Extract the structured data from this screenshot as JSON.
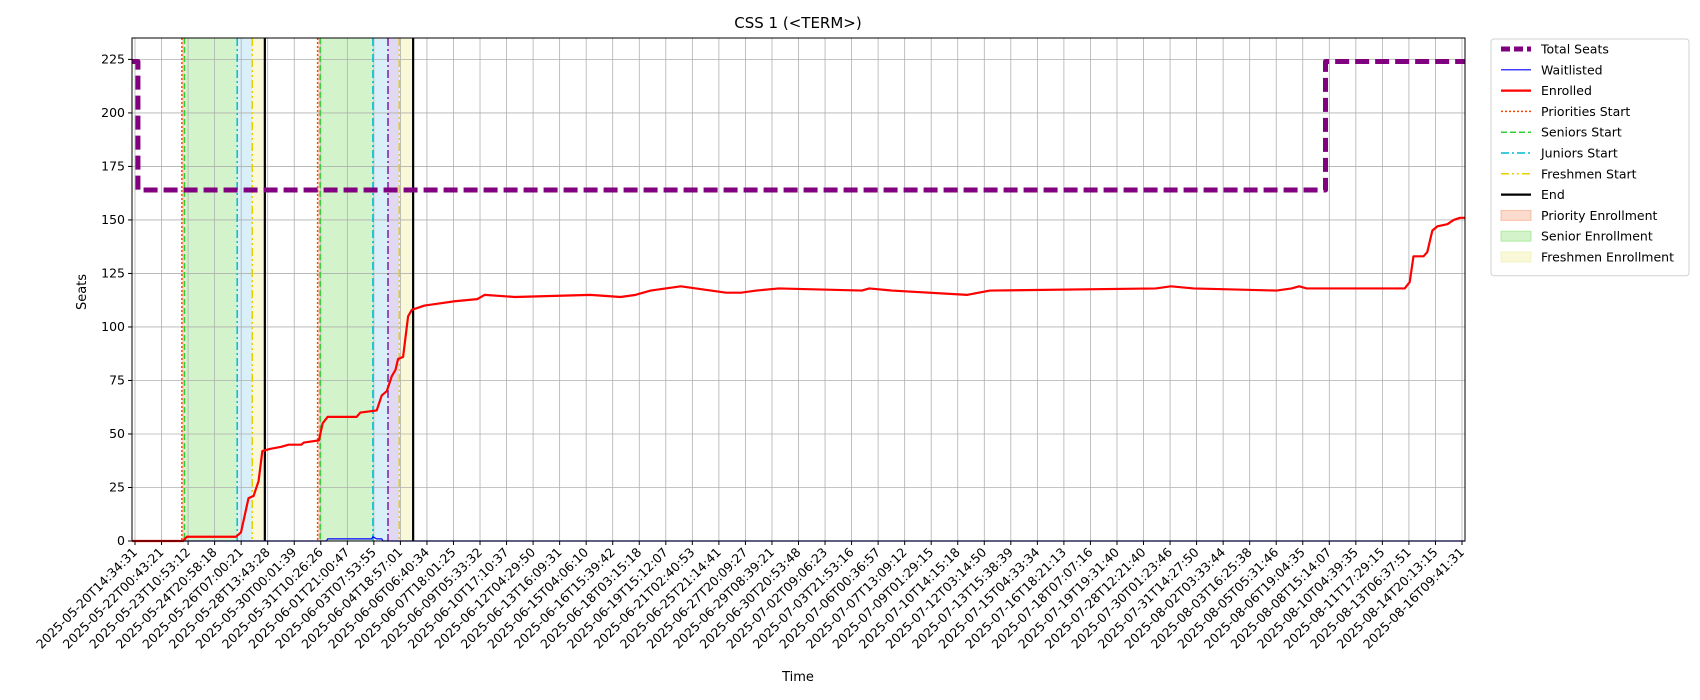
{
  "chart_data": {
    "type": "line",
    "title": "CSS 1 (<TERM>)",
    "xlabel": "Time",
    "ylabel": "Seats",
    "x_range": [
      "2025-05-20T14:34:31",
      "2025-08-17T00:00:00"
    ],
    "ylim": [
      0,
      235
    ],
    "y_ticks": [
      0,
      25,
      50,
      75,
      100,
      125,
      150,
      175,
      200,
      225
    ],
    "x_tick_labels": [
      "2025-05-20T14:34:31",
      "2025-05-22T00:43:21",
      "2025-05-23T10:53:12",
      "2025-05-24T20:58:18",
      "2025-05-26T07:00:21",
      "2025-05-28T13:43:28",
      "2025-05-30T00:01:39",
      "2025-05-31T10:26:26",
      "2025-06-01T21:00:47",
      "2025-06-03T07:53:55",
      "2025-06-04T18:57:01",
      "2025-06-06T06:40:34",
      "2025-06-07T18:01:25",
      "2025-06-09T05:33:32",
      "2025-06-10T17:10:37",
      "2025-06-12T04:29:50",
      "2025-06-13T16:09:31",
      "2025-06-15T04:06:10",
      "2025-06-16T15:39:42",
      "2025-06-18T03:15:18",
      "2025-06-19T15:12:07",
      "2025-06-21T02:40:53",
      "2025-06-25T21:14:41",
      "2025-06-27T20:09:27",
      "2025-06-29T08:39:21",
      "2025-06-30T20:53:48",
      "2025-07-02T09:06:23",
      "2025-07-03T21:53:16",
      "2025-07-06T00:36:57",
      "2025-07-07T13:09:12",
      "2025-07-09T01:29:15",
      "2025-07-10T14:15:18",
      "2025-07-12T03:14:50",
      "2025-07-13T15:38:39",
      "2025-07-15T04:33:34",
      "2025-07-16T18:21:13",
      "2025-07-18T07:07:16",
      "2025-07-19T19:31:40",
      "2025-07-28T12:21:40",
      "2025-07-30T01:23:46",
      "2025-07-31T14:27:50",
      "2025-08-02T03:33:44",
      "2025-08-03T16:25:38",
      "2025-08-05T05:31:46",
      "2025-08-06T19:04:35",
      "2025-08-08T15:14:07",
      "2025-08-10T04:39:35",
      "2025-08-11T17:29:15",
      "2025-08-13T06:37:51",
      "2025-08-14T20:13:15",
      "2025-08-16T09:41:31"
    ],
    "grid": true,
    "legend_position": "outside-right",
    "series": [
      {
        "name": "Total Seats",
        "color": "#800080",
        "style": "dashed-thick",
        "points": [
          [
            "2025-05-20T14:34:31",
            224
          ],
          [
            "2025-05-21T00:00:00",
            224
          ],
          [
            "2025-05-21T00:00:00",
            164
          ],
          [
            "2025-08-07T18:00:00",
            164
          ],
          [
            "2025-08-07T18:00:00",
            224
          ],
          [
            "2025-08-17T00:00:00",
            224
          ]
        ]
      },
      {
        "name": "Waitlisted",
        "color": "#0000ff",
        "style": "solid-thin",
        "points": [
          [
            "2025-05-20T14:34:31",
            0
          ],
          [
            "2025-06-02T12:00:00",
            0
          ],
          [
            "2025-06-02T14:00:00",
            1
          ],
          [
            "2025-06-05T12:00:00",
            1
          ],
          [
            "2025-06-05T14:00:00",
            2
          ],
          [
            "2025-06-05T20:00:00",
            1
          ],
          [
            "2025-06-06T04:00:00",
            1
          ],
          [
            "2025-06-06T06:00:00",
            0
          ],
          [
            "2025-08-17T00:00:00",
            0
          ]
        ]
      },
      {
        "name": "Enrolled",
        "color": "#ff0000",
        "style": "solid",
        "points": [
          [
            "2025-05-20T14:34:31",
            0
          ],
          [
            "2025-05-24T00:00:00",
            0
          ],
          [
            "2025-05-24T06:00:00",
            2
          ],
          [
            "2025-05-27T12:00:00",
            2
          ],
          [
            "2025-05-27T20:00:00",
            4
          ],
          [
            "2025-05-28T02:00:00",
            12
          ],
          [
            "2025-05-28T08:00:00",
            20
          ],
          [
            "2025-05-28T16:00:00",
            21
          ],
          [
            "2025-05-29T00:00:00",
            28
          ],
          [
            "2025-05-29T06:00:00",
            42
          ],
          [
            "2025-05-29T18:00:00",
            43
          ],
          [
            "2025-05-30T12:00:00",
            44
          ],
          [
            "2025-05-31T00:00:00",
            45
          ],
          [
            "2025-05-31T20:00:00",
            45
          ],
          [
            "2025-06-01T00:00:00",
            46
          ],
          [
            "2025-06-02T00:00:00",
            47
          ],
          [
            "2025-06-02T06:00:00",
            55
          ],
          [
            "2025-06-02T14:00:00",
            58
          ],
          [
            "2025-06-04T12:00:00",
            58
          ],
          [
            "2025-06-04T18:00:00",
            60
          ],
          [
            "2025-06-05T20:00:00",
            61
          ],
          [
            "2025-06-06T04:00:00",
            68
          ],
          [
            "2025-06-06T12:00:00",
            70
          ],
          [
            "2025-06-06T20:00:00",
            77
          ],
          [
            "2025-06-07T02:00:00",
            80
          ],
          [
            "2025-06-07T06:00:00",
            85
          ],
          [
            "2025-06-07T14:00:00",
            86
          ],
          [
            "2025-06-07T22:00:00",
            105
          ],
          [
            "2025-06-08T04:00:00",
            108
          ],
          [
            "2025-06-08T14:00:00",
            109
          ],
          [
            "2025-06-09T00:00:00",
            110
          ],
          [
            "2025-06-10T00:00:00",
            111
          ],
          [
            "2025-06-11T00:00:00",
            112
          ],
          [
            "2025-06-12T12:00:00",
            113
          ],
          [
            "2025-06-13T00:00:00",
            115
          ],
          [
            "2025-06-15T00:00:00",
            114
          ],
          [
            "2025-06-20T00:00:00",
            115
          ],
          [
            "2025-06-22T00:00:00",
            114
          ],
          [
            "2025-06-23T00:00:00",
            115
          ],
          [
            "2025-06-24T00:00:00",
            117
          ],
          [
            "2025-06-26T00:00:00",
            119
          ],
          [
            "2025-06-28T00:00:00",
            117
          ],
          [
            "2025-06-29T00:00:00",
            116
          ],
          [
            "2025-06-30T00:00:00",
            116
          ],
          [
            "2025-07-01T00:00:00",
            117
          ],
          [
            "2025-07-02T12:00:00",
            118
          ],
          [
            "2025-07-08T00:00:00",
            117
          ],
          [
            "2025-07-08T12:00:00",
            118
          ],
          [
            "2025-07-10T00:00:00",
            117
          ],
          [
            "2025-07-15T00:00:00",
            115
          ],
          [
            "2025-07-16T12:00:00",
            117
          ],
          [
            "2025-07-27T12:00:00",
            118
          ],
          [
            "2025-07-28T12:00:00",
            119
          ],
          [
            "2025-07-30T00:00:00",
            118
          ],
          [
            "2025-08-04T12:00:00",
            117
          ],
          [
            "2025-08-05T12:00:00",
            118
          ],
          [
            "2025-08-06T00:00:00",
            119
          ],
          [
            "2025-08-06T12:00:00",
            118
          ],
          [
            "2025-08-13T00:00:00",
            118
          ],
          [
            "2025-08-13T08:00:00",
            121
          ],
          [
            "2025-08-13T14:00:00",
            133
          ],
          [
            "2025-08-14T06:00:00",
            133
          ],
          [
            "2025-08-14T12:00:00",
            135
          ],
          [
            "2025-08-14T20:00:00",
            145
          ],
          [
            "2025-08-15T04:00:00",
            147
          ],
          [
            "2025-08-15T20:00:00",
            148
          ],
          [
            "2025-08-16T06:00:00",
            150
          ],
          [
            "2025-08-16T16:00:00",
            151
          ],
          [
            "2025-08-17T00:00:00",
            151
          ]
        ]
      }
    ],
    "vertical_lines": [
      {
        "name": "Priorities Start",
        "color": "#ff4500",
        "style": "dotted",
        "x": [
          "2025-05-23T22:00:00",
          "2025-06-01T22:00:00"
        ]
      },
      {
        "name": "Seniors Start",
        "color": "#32cd32",
        "style": "dashed",
        "x": [
          "2025-05-24T02:00:00",
          "2025-06-02T02:00:00"
        ]
      },
      {
        "name": "Juniors Start",
        "color": "#00bcd4",
        "style": "dashdot",
        "x": [
          "2025-05-27T14:00:00",
          "2025-06-05T14:00:00"
        ]
      },
      {
        "name": "Freshmen Start",
        "color": "#e6d000",
        "style": "dashdotdot",
        "x": [
          "2025-05-28T14:00:00",
          "2025-06-07T08:00:00"
        ]
      },
      {
        "name": "End",
        "color": "#000000",
        "style": "solid",
        "x": [
          "2025-05-29T10:00:00",
          "2025-06-08T06:00:00"
        ]
      },
      {
        "name": "",
        "color": "#7b1fa2",
        "style": "dashdot",
        "x": [
          "2025-06-06T14:00:00"
        ]
      }
    ],
    "shaded_regions": [
      {
        "name": "Priority Enrollment",
        "color": "#f4a582",
        "ranges": [
          [
            "2025-05-23T22:00:00",
            "2025-05-24T02:00:00"
          ],
          [
            "2025-06-01T22:00:00",
            "2025-06-02T02:00:00"
          ]
        ]
      },
      {
        "name": "Senior Enrollment",
        "color": "#90e27a",
        "ranges": [
          [
            "2025-05-24T02:00:00",
            "2025-05-27T14:00:00"
          ],
          [
            "2025-06-02T02:00:00",
            "2025-06-05T14:00:00"
          ]
        ]
      },
      {
        "name": "",
        "color": "#a0d8f0",
        "ranges": [
          [
            "2025-05-27T14:00:00",
            "2025-05-28T14:00:00"
          ],
          [
            "2025-06-05T14:00:00",
            "2025-06-06T14:00:00"
          ]
        ]
      },
      {
        "name": "",
        "color": "#b39ddb",
        "ranges": [
          [
            "2025-06-06T14:00:00",
            "2025-06-07T08:00:00"
          ]
        ]
      },
      {
        "name": "Freshmen Enrollment",
        "color": "#f0f0a0",
        "ranges": [
          [
            "2025-05-28T14:00:00",
            "2025-05-29T10:00:00"
          ],
          [
            "2025-06-07T08:00:00",
            "2025-06-08T06:00:00"
          ]
        ]
      }
    ],
    "legend": [
      {
        "label": "Total Seats",
        "kind": "line",
        "color": "#800080",
        "style": "dashed-thick"
      },
      {
        "label": "Waitlisted",
        "kind": "line",
        "color": "#0000ff",
        "style": "solid-thin"
      },
      {
        "label": "Enrolled",
        "kind": "line",
        "color": "#ff0000",
        "style": "solid"
      },
      {
        "label": "Priorities Start",
        "kind": "line",
        "color": "#ff4500",
        "style": "dotted"
      },
      {
        "label": "Seniors Start",
        "kind": "line",
        "color": "#32cd32",
        "style": "dashed"
      },
      {
        "label": "Juniors Start",
        "kind": "line",
        "color": "#00bcd4",
        "style": "dashdot"
      },
      {
        "label": "Freshmen Start",
        "kind": "line",
        "color": "#e6d000",
        "style": "dashdotdot"
      },
      {
        "label": "End",
        "kind": "line",
        "color": "#000000",
        "style": "solid"
      },
      {
        "label": "Priority Enrollment",
        "kind": "patch",
        "color": "#f4a582"
      },
      {
        "label": "Senior Enrollment",
        "kind": "patch",
        "color": "#90e27a"
      },
      {
        "label": "Freshmen Enrollment",
        "kind": "patch",
        "color": "#f0f0a0"
      }
    ]
  }
}
